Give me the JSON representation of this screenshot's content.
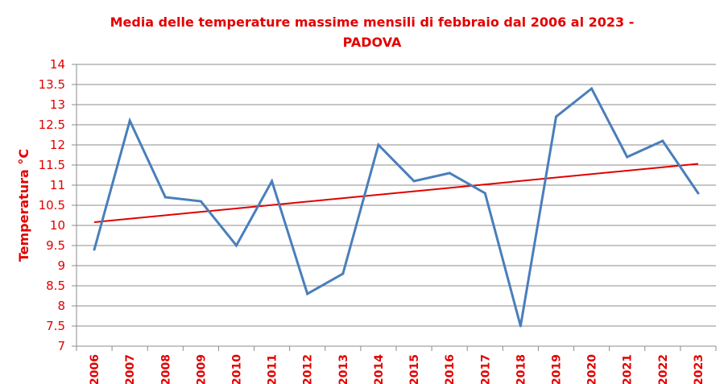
{
  "chart_data": {
    "type": "line",
    "title_line1": "Media delle temperature massime mensili di febbraio  dal 2006 al 2023 -",
    "title_line2": "PADOVA",
    "xlabel": "",
    "ylabel": "Temperatura °C",
    "ylim": [
      7,
      14
    ],
    "yticks": [
      "7",
      "7.5",
      "8",
      "8.5",
      "9",
      "9.5",
      "10",
      "10.5",
      "11",
      "11.5",
      "12",
      "12.5",
      "13",
      "13.5",
      "14"
    ],
    "categories": [
      "2006",
      "2007",
      "2008",
      "2009",
      "2010",
      "2011",
      "2012",
      "2013",
      "2014",
      "2015",
      "2016",
      "2017",
      "2018",
      "2019",
      "2020",
      "2021",
      "2022",
      "2023"
    ],
    "series": [
      {
        "values": [
          9.4,
          12.6,
          10.7,
          10.6,
          9.5,
          11.1,
          8.3,
          8.8,
          12.0,
          11.1,
          11.3,
          10.8,
          7.5,
          12.7,
          13.4,
          11.7,
          12.1,
          10.8
        ],
        "color": "#4a7ebb"
      }
    ],
    "trendline": {
      "start": 10.08,
      "end": 11.53,
      "color": "#e00000"
    },
    "grid": true,
    "legend": "none"
  }
}
